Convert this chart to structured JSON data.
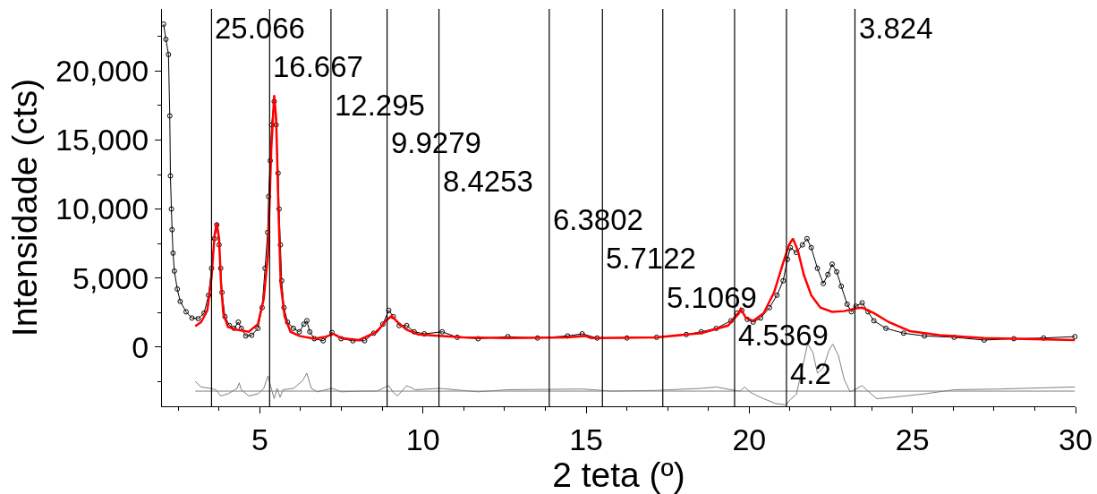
{
  "chart_data": {
    "type": "line",
    "xlabel": "2 teta (º)",
    "ylabel": "Intensidade (cts)",
    "xlim": [
      2,
      30
    ],
    "ylim": [
      -4300,
      24500
    ],
    "xticks": [
      {
        "value": 2.5,
        "label": null
      },
      {
        "value": 3.75,
        "label": null
      },
      5,
      {
        "value": 6.25,
        "label": null
      },
      {
        "value": 7.5,
        "label": null
      },
      {
        "value": 8.75,
        "label": null
      },
      10,
      {
        "value": 11.25,
        "label": null
      },
      {
        "value": 12.5,
        "label": null
      },
      {
        "value": 13.75,
        "label": null
      },
      15,
      {
        "value": 16.25,
        "label": null
      },
      {
        "value": 17.5,
        "label": null
      },
      {
        "value": 18.75,
        "label": null
      },
      20,
      {
        "value": 21.25,
        "label": null
      },
      {
        "value": 22.5,
        "label": null
      },
      {
        "value": 23.75,
        "label": null
      },
      25,
      {
        "value": 26.25,
        "label": null
      },
      {
        "value": 27.5,
        "label": null
      },
      {
        "value": 28.75,
        "label": null
      },
      30
    ],
    "yticks": [
      {
        "value": -2500,
        "label": null
      },
      0,
      {
        "value": 2500,
        "label": null
      },
      {
        "value": 5000,
        "label": "5,000"
      },
      {
        "value": 7500,
        "label": null
      },
      {
        "value": 10000,
        "label": "10,000"
      },
      {
        "value": 12500,
        "label": null
      },
      {
        "value": 15000,
        "label": "15,000"
      },
      {
        "value": 17500,
        "label": null
      },
      {
        "value": 20000,
        "label": "20,000"
      },
      {
        "value": 22500,
        "label": null
      }
    ],
    "grid": false,
    "marker": "none",
    "line_style": "solid",
    "series": [
      {
        "color": "#000000",
        "marker": "circle",
        "x": [
          2.05,
          2.12,
          2.2,
          2.24,
          2.26,
          2.29,
          2.31,
          2.34,
          2.38,
          2.47,
          2.56,
          2.74,
          2.92,
          3.11,
          3.29,
          3.43,
          3.52,
          3.61,
          3.68,
          3.75,
          3.8,
          3.84,
          3.93,
          4.07,
          4.21,
          4.34,
          4.43,
          4.57,
          4.75,
          4.94,
          5.07,
          5.16,
          5.24,
          5.27,
          5.32,
          5.36,
          5.44,
          5.5,
          5.56,
          5.59,
          5.63,
          5.67,
          5.74,
          5.85,
          6.03,
          6.21,
          6.35,
          6.44,
          6.53,
          6.67,
          6.94,
          7.21,
          7.49,
          7.85,
          8.21,
          8.49,
          8.77,
          8.95,
          9.09,
          9.27,
          9.5,
          9.73,
          10.04,
          10.59,
          11.05,
          11.69,
          12.6,
          13.51,
          14.43,
          14.88,
          15.34,
          16.25,
          17.16,
          18.07,
          18.53,
          18.99,
          19.44,
          19.63,
          19.77,
          19.94,
          20.12,
          20.35,
          20.62,
          20.85,
          21.04,
          21.17,
          21.26,
          21.44,
          21.63,
          21.77,
          21.9,
          22.09,
          22.27,
          22.41,
          22.54,
          22.68,
          22.82,
          23.0,
          23.13,
          23.27,
          23.46,
          23.64,
          23.82,
          24.19,
          24.73,
          25.37,
          26.28,
          27.2,
          28.11,
          29.02,
          29.98
        ],
        "values": [
          23400,
          22300,
          21200,
          16750,
          12400,
          10000,
          8500,
          6800,
          5500,
          4200,
          3300,
          2550,
          2100,
          2050,
          2450,
          3750,
          5700,
          7850,
          8850,
          7400,
          5700,
          3950,
          2200,
          1550,
          1350,
          1800,
          1350,
          800,
          850,
          1350,
          2850,
          5700,
          8300,
          10900,
          13500,
          16100,
          17800,
          16100,
          12600,
          10000,
          7400,
          4800,
          2850,
          1800,
          1350,
          1100,
          1650,
          1900,
          1100,
          600,
          450,
          1050,
          600,
          450,
          450,
          1000,
          1650,
          2650,
          2200,
          1550,
          1550,
          1100,
          950,
          1100,
          700,
          600,
          750,
          650,
          800,
          950,
          650,
          650,
          700,
          900,
          1100,
          1350,
          1900,
          2450,
          2650,
          2000,
          1800,
          2100,
          2850,
          3750,
          4800,
          6350,
          7200,
          6850,
          7400,
          7850,
          7200,
          5700,
          4600,
          5250,
          6000,
          5450,
          4400,
          3100,
          2550,
          2950,
          3200,
          2550,
          1900,
          1350,
          1000,
          800,
          700,
          500,
          600,
          650,
          750
        ]
      },
      {
        "color": "#ff0000",
        "x": [
          3.02,
          3.2,
          3.39,
          3.52,
          3.61,
          3.68,
          3.75,
          3.81,
          3.88,
          4.02,
          4.3,
          4.66,
          4.94,
          5.12,
          5.25,
          5.35,
          5.44,
          5.5,
          5.57,
          5.64,
          5.76,
          5.94,
          6.21,
          6.67,
          7.03,
          7.26,
          7.49,
          8.04,
          8.59,
          8.86,
          9.04,
          9.22,
          9.5,
          9.86,
          11.23,
          12.6,
          14.43,
          14.97,
          15.15,
          17.16,
          18.53,
          19.35,
          19.63,
          19.74,
          19.9,
          20.12,
          20.44,
          20.76,
          21.04,
          21.22,
          21.34,
          21.49,
          21.67,
          21.9,
          22.18,
          22.54,
          22.91,
          23.27,
          23.46,
          23.82,
          24.28,
          24.92,
          25.83,
          27.2,
          29.98
        ],
        "values": [
          1500,
          1800,
          2650,
          5050,
          8050,
          9000,
          7850,
          4600,
          2450,
          1450,
          1250,
          1100,
          1650,
          3500,
          6750,
          14350,
          18250,
          16550,
          10000,
          4600,
          2200,
          1100,
          800,
          600,
          750,
          950,
          650,
          500,
          1100,
          1900,
          2250,
          1800,
          1250,
          900,
          700,
          650,
          700,
          800,
          650,
          700,
          1000,
          1550,
          2300,
          2750,
          2100,
          1900,
          2450,
          3950,
          6100,
          7400,
          7850,
          7000,
          5250,
          3750,
          2850,
          2550,
          2600,
          2800,
          2850,
          2450,
          1800,
          1150,
          850,
          650,
          500
        ]
      },
      {
        "color": "#808080",
        "x": [
          3.02,
          3.2,
          3.48,
          3.66,
          3.8,
          4.02,
          4.3,
          4.37,
          4.43,
          4.66,
          4.94,
          5.12,
          5.25,
          5.35,
          5.44,
          5.53,
          5.62,
          5.71,
          6.03,
          6.31,
          6.44,
          6.58,
          6.76,
          7.21,
          7.49,
          8.21,
          8.59,
          8.95,
          9.09,
          9.22,
          9.5,
          9.77,
          10.5,
          11.69,
          12.6,
          14.88,
          15.79,
          17.16,
          18.53,
          18.99,
          19.44,
          19.72,
          19.86,
          20.04,
          20.44,
          20.81,
          21.13,
          21.26,
          21.44,
          21.63,
          21.79,
          21.95,
          22.09,
          22.27,
          22.45,
          22.56,
          22.73,
          22.91,
          23.09,
          23.23,
          23.46,
          23.64,
          23.91,
          24.37,
          25.37,
          26.28,
          27.65,
          29.98
        ],
        "values": [
          -2500,
          -2900,
          -3000,
          -3100,
          -3550,
          -3400,
          -3000,
          -2600,
          -3100,
          -3550,
          -3400,
          -3000,
          -2100,
          -3000,
          -3750,
          -3000,
          -3650,
          -3100,
          -3000,
          -2450,
          -1900,
          -3000,
          -3250,
          -3000,
          -3250,
          -3200,
          -3200,
          -2800,
          -3300,
          -3550,
          -2800,
          -3100,
          -3000,
          -3250,
          -3100,
          -3050,
          -3200,
          -3150,
          -3000,
          -2900,
          -3100,
          -3200,
          -2900,
          -3300,
          -3750,
          -4100,
          -4200,
          -3800,
          -3450,
          -1500,
          250,
          -400,
          -1900,
          -1500,
          -200,
          200,
          -600,
          -2350,
          -3250,
          -3100,
          -2800,
          -3200,
          -3750,
          -3650,
          -3400,
          -3100,
          -3050,
          -2900
        ]
      },
      {
        "color": "#808080",
        "x": [
          3.02,
          29.98
        ],
        "values": [
          -3200,
          -3200
        ]
      }
    ],
    "ref_lines": [
      {
        "axis": "x",
        "value": 3.52,
        "color": "#000000"
      },
      {
        "axis": "x",
        "value": 5.3,
        "color": "#000000"
      },
      {
        "axis": "x",
        "value": 7.18,
        "color": "#000000"
      },
      {
        "axis": "x",
        "value": 8.9,
        "color": "#000000"
      },
      {
        "axis": "x",
        "value": 10.49,
        "color": "#000000"
      },
      {
        "axis": "x",
        "value": 13.87,
        "color": "#000000"
      },
      {
        "axis": "x",
        "value": 15.5,
        "color": "#000000"
      },
      {
        "axis": "x",
        "value": 17.35,
        "color": "#000000"
      },
      {
        "axis": "x",
        "value": 19.55,
        "color": "#000000"
      },
      {
        "axis": "x",
        "value": 21.14,
        "color": "#000000"
      },
      {
        "axis": "x",
        "value": 23.24,
        "color": "#000000"
      }
    ],
    "annotations": [
      {
        "text": "25.066",
        "x": 3.52,
        "y": 23100
      },
      {
        "text": "16.667",
        "x": 5.3,
        "y": 20300
      },
      {
        "text": "12.295",
        "x": 7.18,
        "y": 17500
      },
      {
        "text": "9.9279",
        "x": 8.9,
        "y": 14800
      },
      {
        "text": "8.4253",
        "x": 10.49,
        "y": 12000
      },
      {
        "text": "6.3802",
        "x": 13.87,
        "y": 9250
      },
      {
        "text": "5.7122",
        "x": 15.5,
        "y": 6450
      },
      {
        "text": "5.1069",
        "x": 17.35,
        "y": 3600
      },
      {
        "text": "4.5369",
        "x": 19.55,
        "y": 850
      },
      {
        "text": "4.2",
        "x": 21.14,
        "y": -1950
      },
      {
        "text": "3.824",
        "x": 23.24,
        "y": 23100
      }
    ]
  }
}
